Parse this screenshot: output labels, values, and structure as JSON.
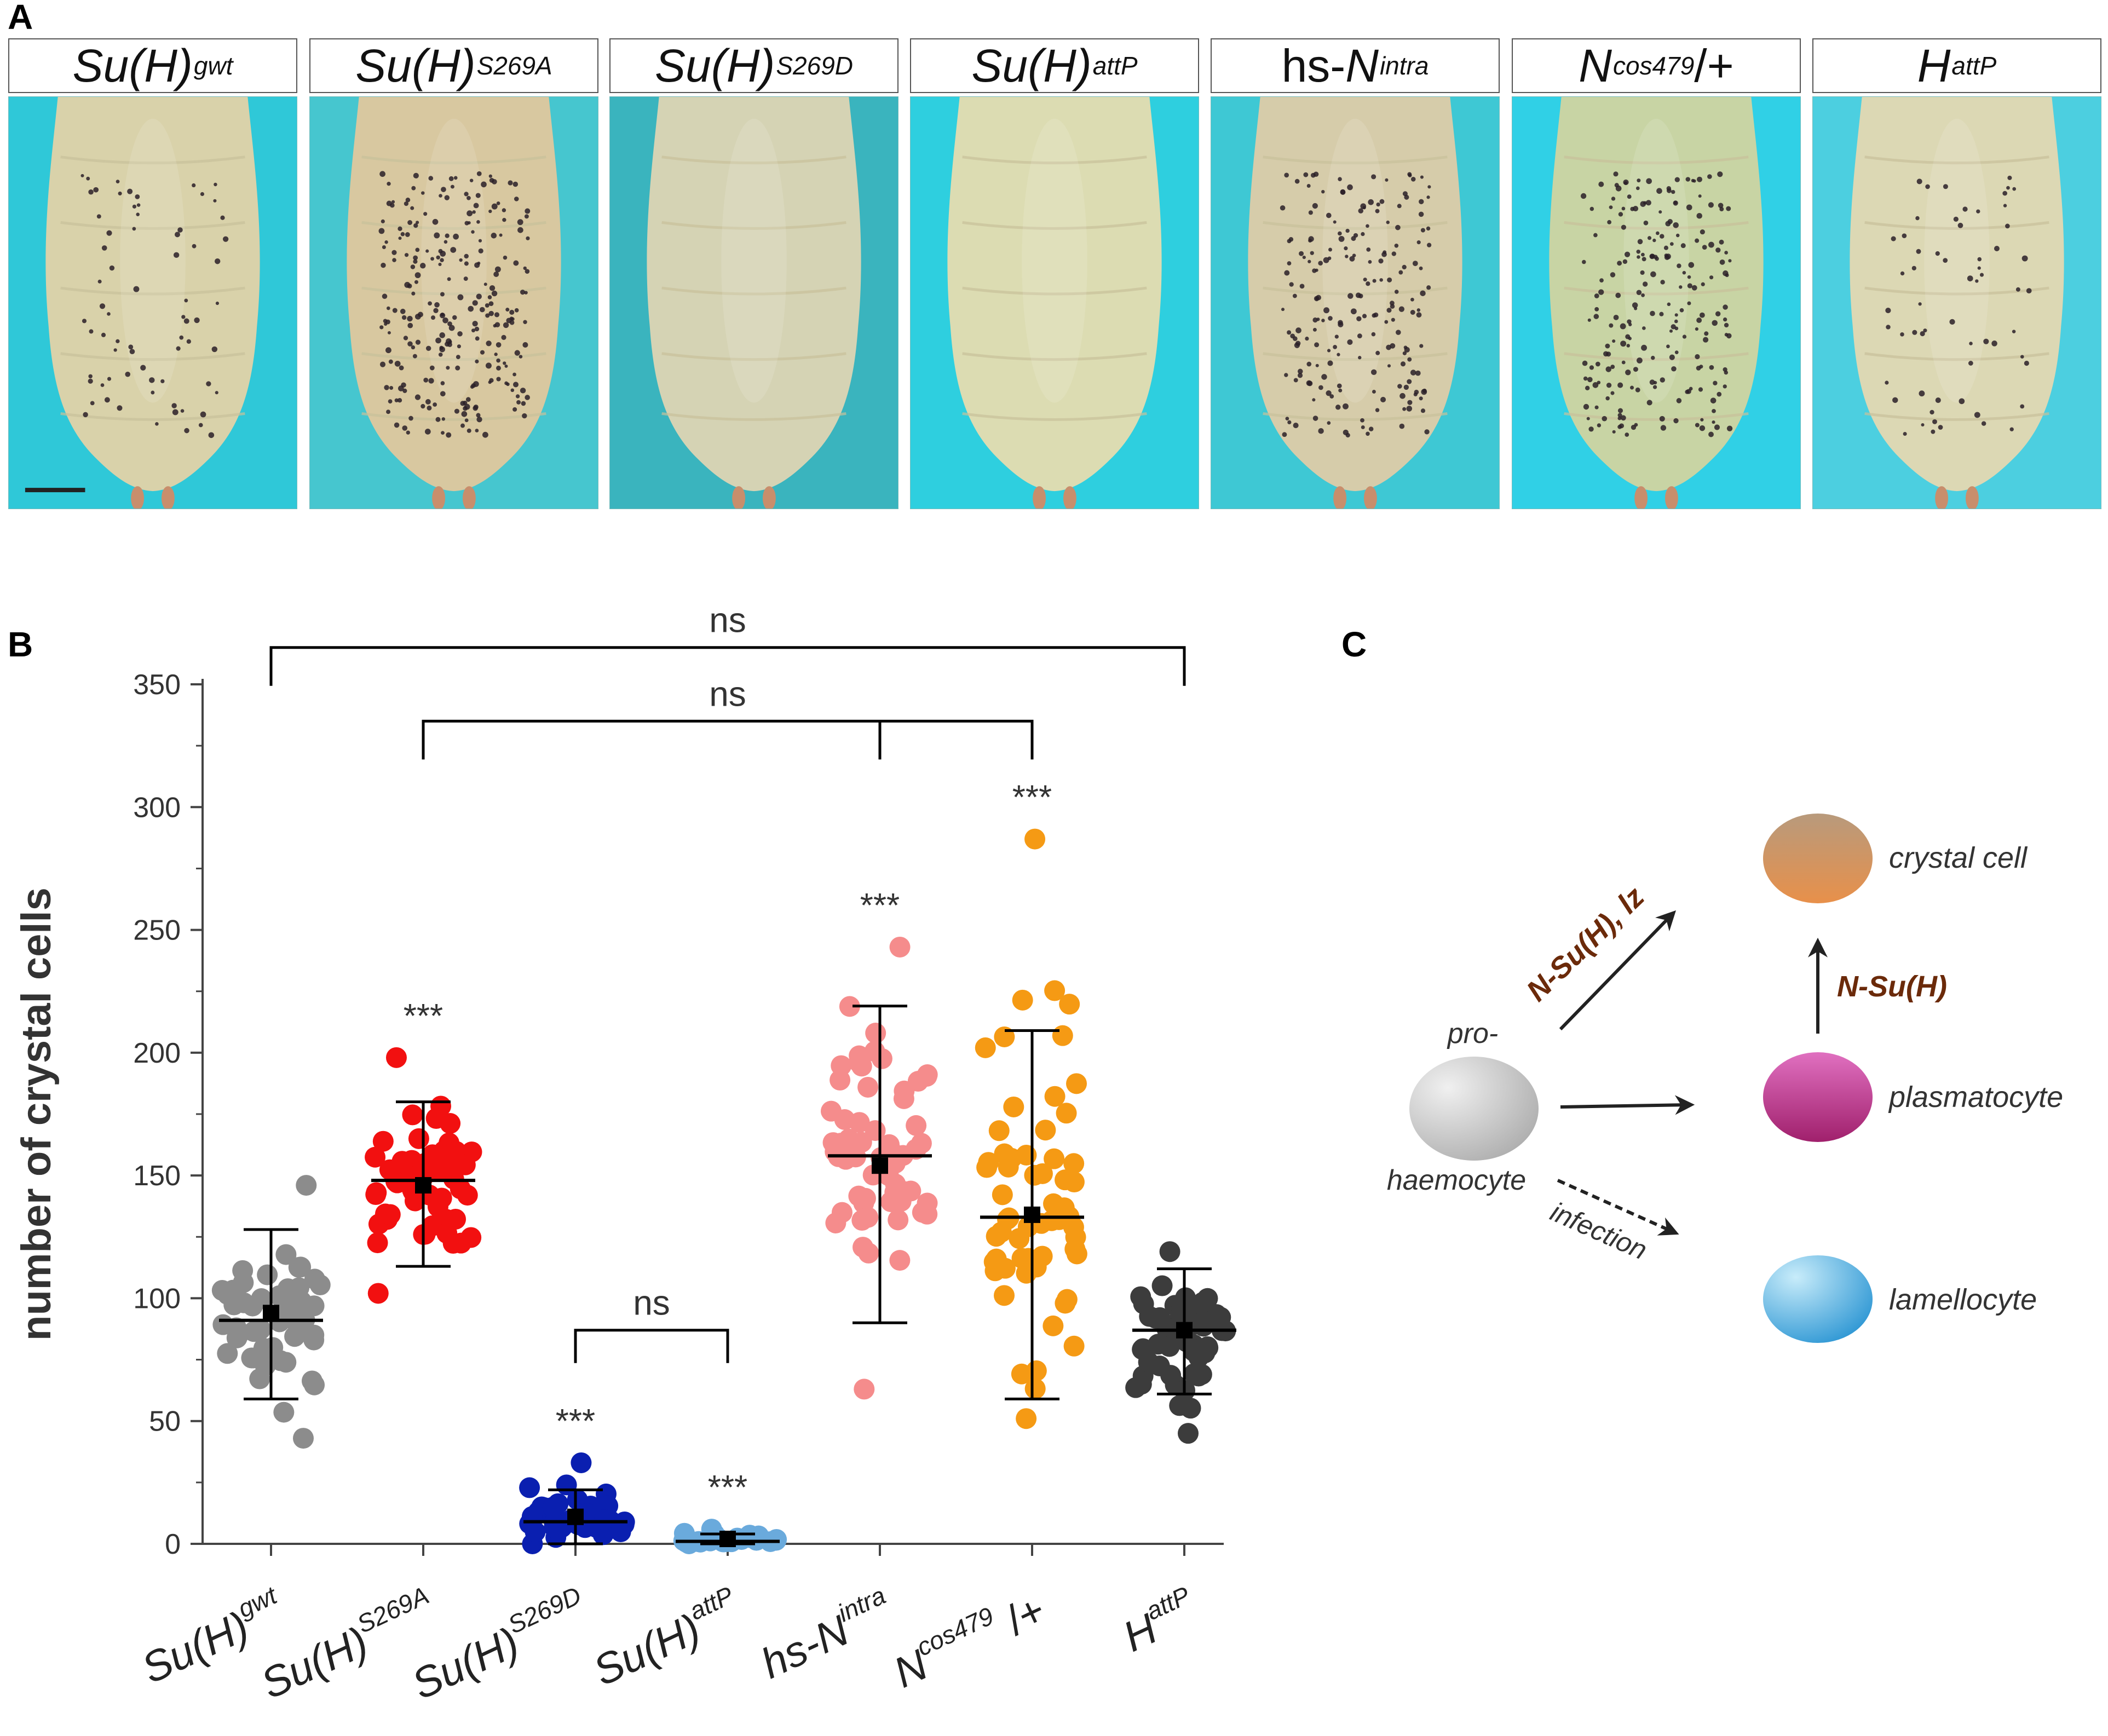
{
  "panel_letters": {
    "a": "A",
    "b": "B",
    "c": "C"
  },
  "panel_a": {
    "images": [
      {
        "label_main": "Su(H)",
        "label_sup": "gwt",
        "label_suffix": "",
        "italic": true,
        "background": "#2fc8d8",
        "larva_color": "#d9d2aa",
        "dot_count": 70
      },
      {
        "label_main": "Su(H)",
        "label_sup": "S269A",
        "label_suffix": "",
        "italic": true,
        "background": "#46c6cf",
        "larva_color": "#d8c8a0",
        "dot_count": 260
      },
      {
        "label_main": "Su(H)",
        "label_sup": "S269D",
        "label_suffix": "",
        "italic": true,
        "background": "#3ab4be",
        "larva_color": "#d5d3b4",
        "dot_count": 0
      },
      {
        "label_main": "Su(H)",
        "label_sup": "attP",
        "label_suffix": "",
        "italic": true,
        "background": "#2ecfdf",
        "larva_color": "#dcdcb2",
        "dot_count": 0
      },
      {
        "label_main": "hs-N",
        "label_sup": "intra",
        "label_suffix": "",
        "italic": false,
        "background": "#3ec8d4",
        "larva_color": "#d6ccaa",
        "dot_count": 200
      },
      {
        "label_main": "N",
        "label_sup": "cos479",
        "label_suffix": "/+",
        "italic": true,
        "background": "#30d0e6",
        "larva_color": "#c8d4a4",
        "dot_count": 220
      },
      {
        "label_main": "H",
        "label_sup": "attP",
        "label_suffix": "",
        "italic": true,
        "background": "#4ccfe0",
        "larva_color": "#dcd8b4",
        "dot_count": 60
      }
    ]
  },
  "chart_data": {
    "type": "scatter",
    "ylabel": "number of crystal cells",
    "ylim": [
      0,
      350
    ],
    "yticks": [
      0,
      50,
      100,
      150,
      200,
      250,
      300,
      350
    ],
    "categories": [
      {
        "main": "Su(H)",
        "sup": "gwt",
        "suffix": ""
      },
      {
        "main": "Su(H)",
        "sup": "S269A",
        "suffix": ""
      },
      {
        "main": "Su(H)",
        "sup": "S269D",
        "suffix": ""
      },
      {
        "main": "Su(H)",
        "sup": "attP",
        "suffix": ""
      },
      {
        "main": "hs-N",
        "sup": "intra",
        "suffix": ""
      },
      {
        "main": "N",
        "sup": "cos479",
        "suffix": " /+"
      },
      {
        "main": "H",
        "sup": "attP",
        "suffix": ""
      }
    ],
    "series": [
      {
        "name": "Su(H)gwt",
        "color": "#8c8c8c",
        "median": 91,
        "mean": 94,
        "sd_low": 59,
        "sd_high": 128,
        "min": 43,
        "max": 146,
        "n": 55,
        "star": ""
      },
      {
        "name": "Su(H)S269A",
        "color": "#f21010",
        "median": 148,
        "mean": 146,
        "sd_low": 113,
        "sd_high": 180,
        "min": 102,
        "max": 198,
        "n": 60,
        "star": "***"
      },
      {
        "name": "Su(H)S269D",
        "color": "#0a1fb0",
        "median": 9,
        "mean": 11,
        "sd_low": 0,
        "sd_high": 22,
        "min": 0,
        "max": 33,
        "n": 45,
        "star": "***"
      },
      {
        "name": "Su(H)attP",
        "color": "#6aaadc",
        "median": 1,
        "mean": 2,
        "sd_low": 0,
        "sd_high": 4,
        "min": 0,
        "max": 6,
        "n": 30,
        "star": "***"
      },
      {
        "name": "hs-Nintra",
        "color": "#f58c8c",
        "median": 158,
        "mean": 154,
        "sd_low": 90,
        "sd_high": 219,
        "min": 63,
        "max": 243,
        "n": 60,
        "star": "***"
      },
      {
        "name": "Ncos479/+",
        "color": "#f59a14",
        "median": 133,
        "mean": 134,
        "sd_low": 59,
        "sd_high": 209,
        "min": 51,
        "max": 287,
        "n": 60,
        "star": "***"
      },
      {
        "name": "HattP",
        "color": "#3c3c3c",
        "median": 87,
        "mean": 87,
        "sd_low": 61,
        "sd_high": 112,
        "min": 45,
        "max": 119,
        "n": 60,
        "star": ""
      }
    ],
    "brackets": [
      {
        "from": 0,
        "to": 6,
        "label": "ns",
        "level": 365
      },
      {
        "from": 1,
        "to": 5,
        "label": "ns",
        "level": 335,
        "mid_tick": 4
      },
      {
        "from": 2,
        "to": 3,
        "label": "ns",
        "level": 87
      }
    ]
  },
  "panel_c": {
    "pro_label": "pro-",
    "haemocyte_label": "haemocyte",
    "crystal_label": "crystal cell",
    "plasmatocyte_label": "plasmatocyte",
    "lamellocyte_label": "lamellocyte",
    "arrow_crystal_label": "N-Su(H), lz",
    "arrow_plasma_crystal_label": "N-Su(H)",
    "infection_label": "infection",
    "label_color": "#6b2a0a",
    "colors": {
      "pro": "#c8c8c8",
      "crystal_top": "#b89a7c",
      "crystal_bottom": "#e8904a",
      "plasma_top": "#e070c0",
      "plasma_bottom": "#a0206c",
      "lamello_top": "#c8ecfa",
      "lamello_bottom": "#1a8ccf"
    }
  }
}
